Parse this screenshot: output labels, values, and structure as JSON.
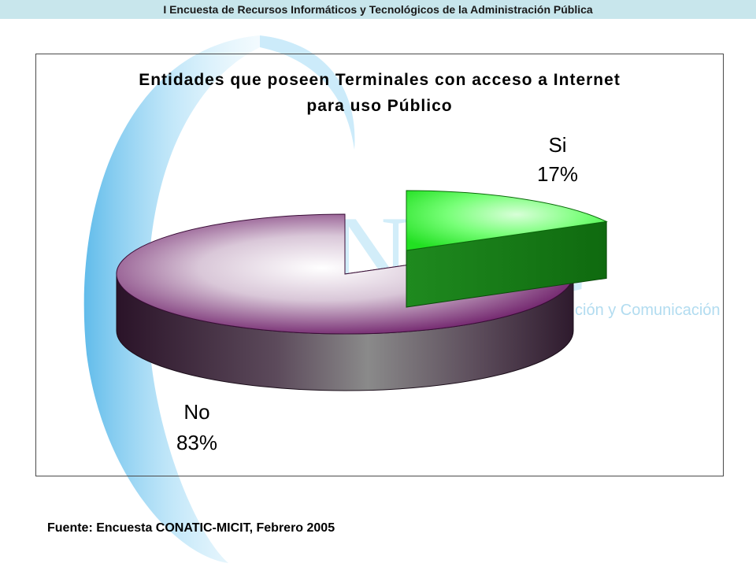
{
  "header": {
    "title": "I Encuesta de Recursos Informáticos y Tecnológicos de la Administración Pública"
  },
  "background": {
    "logo_text": "NTIC",
    "logo_subtitle": "ción y Comunicación",
    "accent_color": "#3fa9e0"
  },
  "chart_data": {
    "type": "pie",
    "title": "Entidades que poseen Terminales con acceso a Internet para uso Público",
    "title_lines": [
      "Entidades que poseen Terminales con acceso a Internet",
      "para uso Público"
    ],
    "slices": [
      {
        "label": "Si",
        "value": 17,
        "value_label": "17%",
        "color": "#33ee33",
        "exploded": true
      },
      {
        "label": "No",
        "value": 83,
        "value_label": "83%",
        "color": "#6b1a66",
        "exploded": false
      }
    ],
    "style": "3d-exploded"
  },
  "footer": {
    "source": "Fuente: Encuesta CONATIC-MICIT, Febrero 2005"
  }
}
